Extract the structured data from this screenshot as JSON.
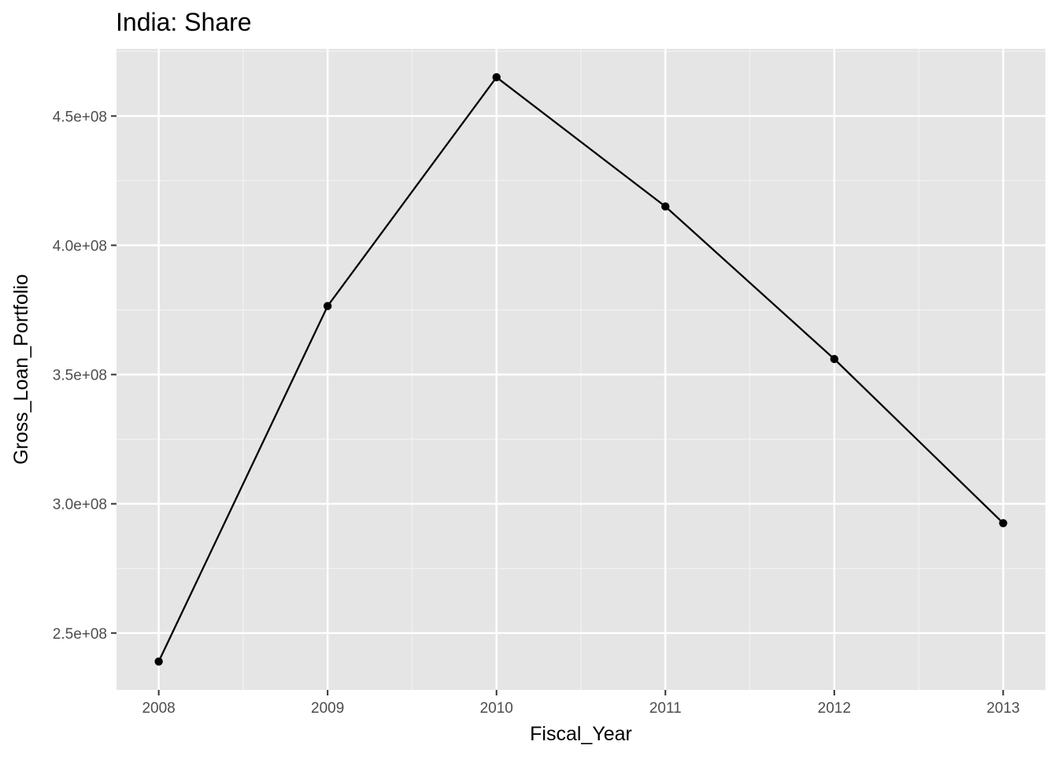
{
  "chart_data": {
    "type": "line",
    "title": "India:  Share",
    "xlabel": "Fiscal_Year",
    "ylabel": "Gross_Loan_Portfolio",
    "x": [
      2008,
      2009,
      2010,
      2011,
      2012,
      2013
    ],
    "x_tick_labels": [
      "2008",
      "2009",
      "2010",
      "2011",
      "2012",
      "2013"
    ],
    "series": [
      {
        "values": [
          239000000,
          376500000,
          465000000,
          415000000,
          356000000,
          292500000
        ]
      }
    ],
    "y_ticks": [
      250000000,
      300000000,
      350000000,
      400000000,
      450000000
    ],
    "y_tick_labels": [
      "2.5e+08",
      "3.0e+08",
      "3.5e+08",
      "4.0e+08",
      "4.5e+08"
    ],
    "xlim": [
      2007.75,
      2013.25
    ],
    "ylim": [
      228000000,
      476000000
    ],
    "grid": true,
    "legend": "none",
    "colors": {
      "panel_background": "#e5e5e5",
      "grid_major": "#ffffff",
      "grid_minor": "#f2f2f2",
      "line": "#000000",
      "point": "#000000",
      "tick_mark": "#333333"
    }
  }
}
